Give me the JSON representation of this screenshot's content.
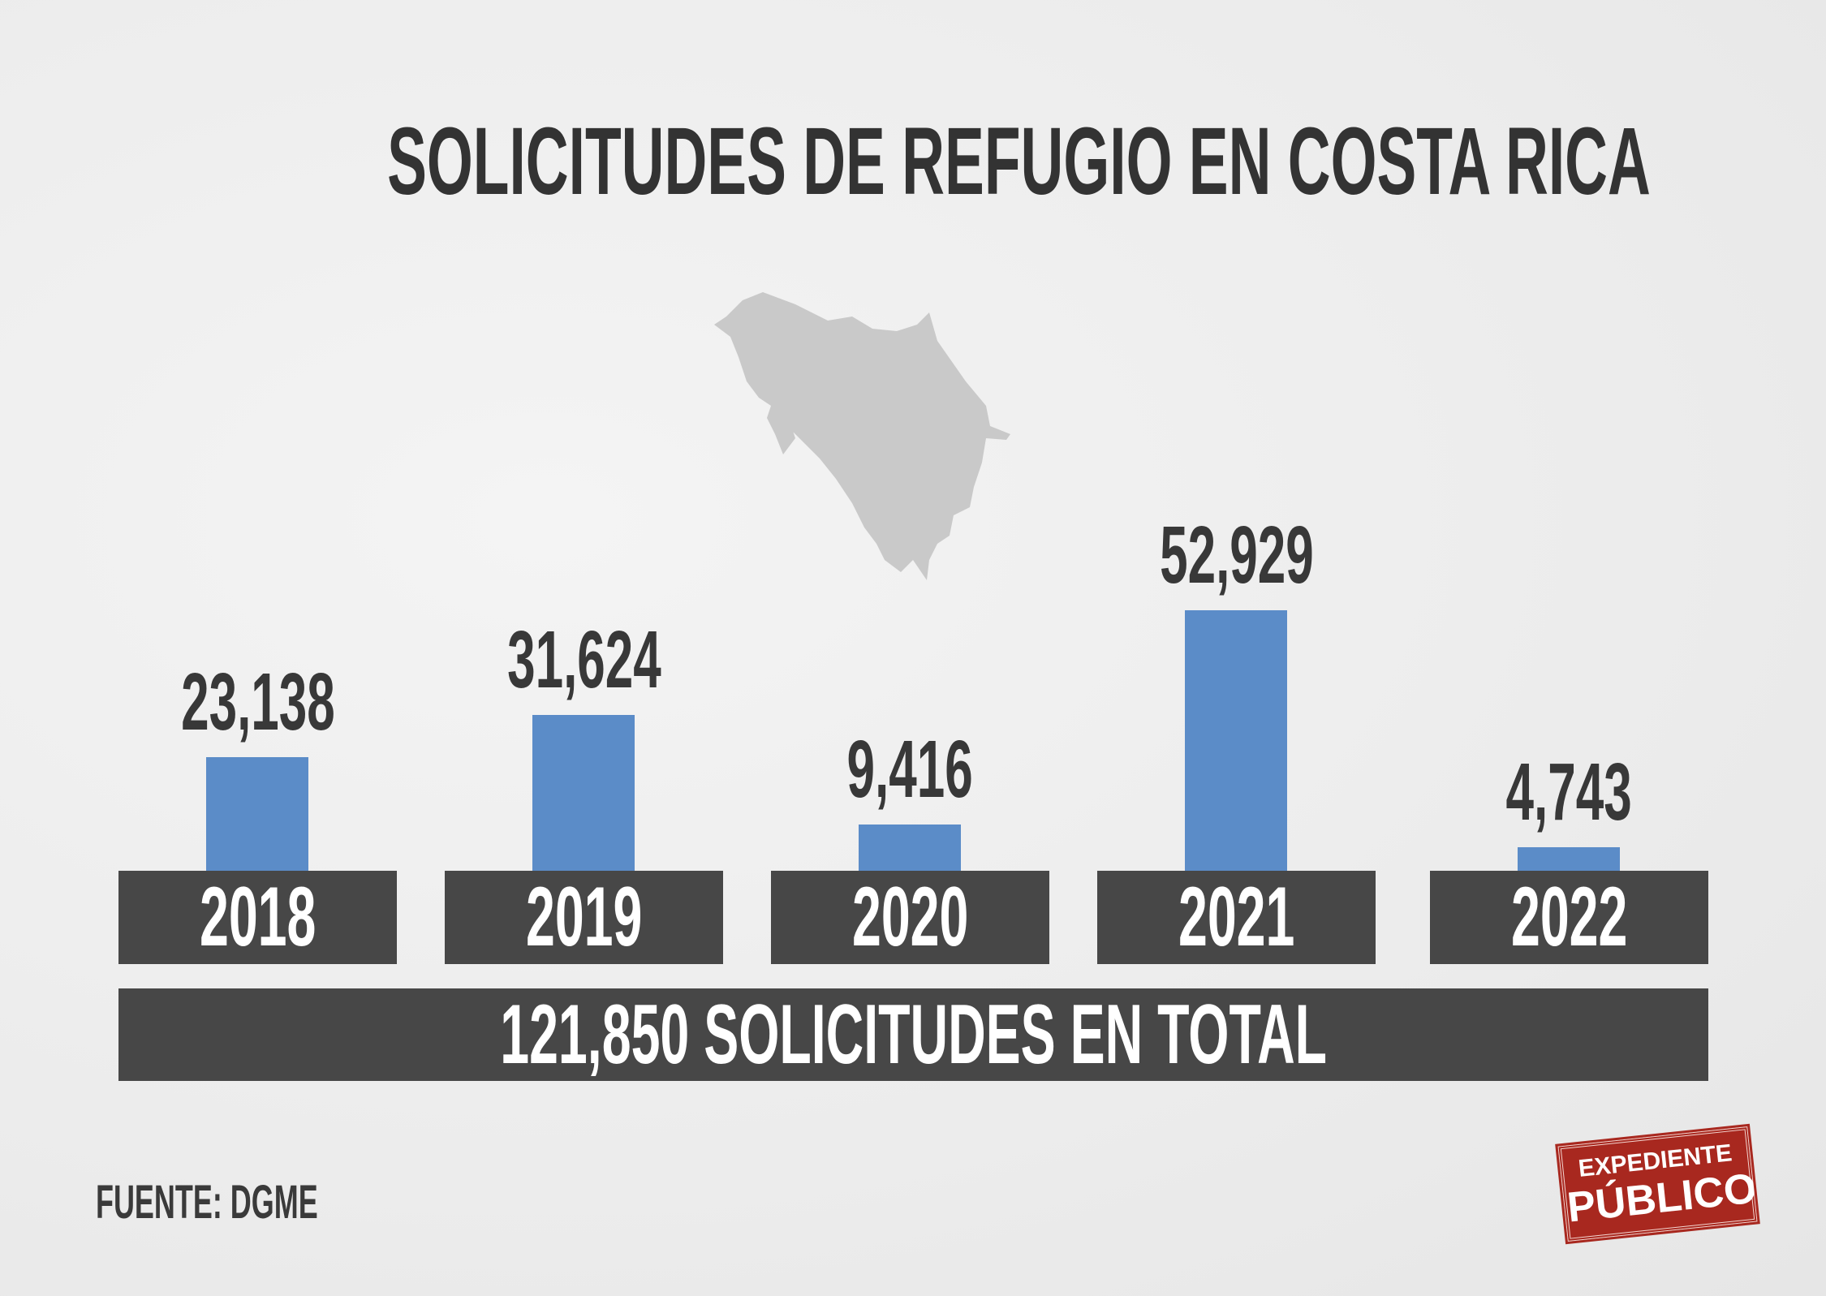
{
  "chart_data": {
    "type": "bar",
    "title": "SOLICITUDES DE REFUGIO EN COSTA RICA",
    "categories": [
      "2018",
      "2019",
      "2020",
      "2021",
      "2022"
    ],
    "values": [
      23138,
      31624,
      9416,
      52929,
      4743
    ],
    "value_labels": [
      "23,138",
      "31,624",
      "9,416",
      "52,929",
      "4,743"
    ],
    "total_label": "121,850 SOLICITUDES EN TOTAL",
    "source": "FUENTE: DGME",
    "xlabel": "",
    "ylabel": "",
    "bar_color": "#5b8cc8",
    "ylim": [
      0,
      52929
    ],
    "grid": false
  },
  "logo": {
    "line1": "EXPEDIENTE",
    "line2": "PÚBLICO"
  }
}
